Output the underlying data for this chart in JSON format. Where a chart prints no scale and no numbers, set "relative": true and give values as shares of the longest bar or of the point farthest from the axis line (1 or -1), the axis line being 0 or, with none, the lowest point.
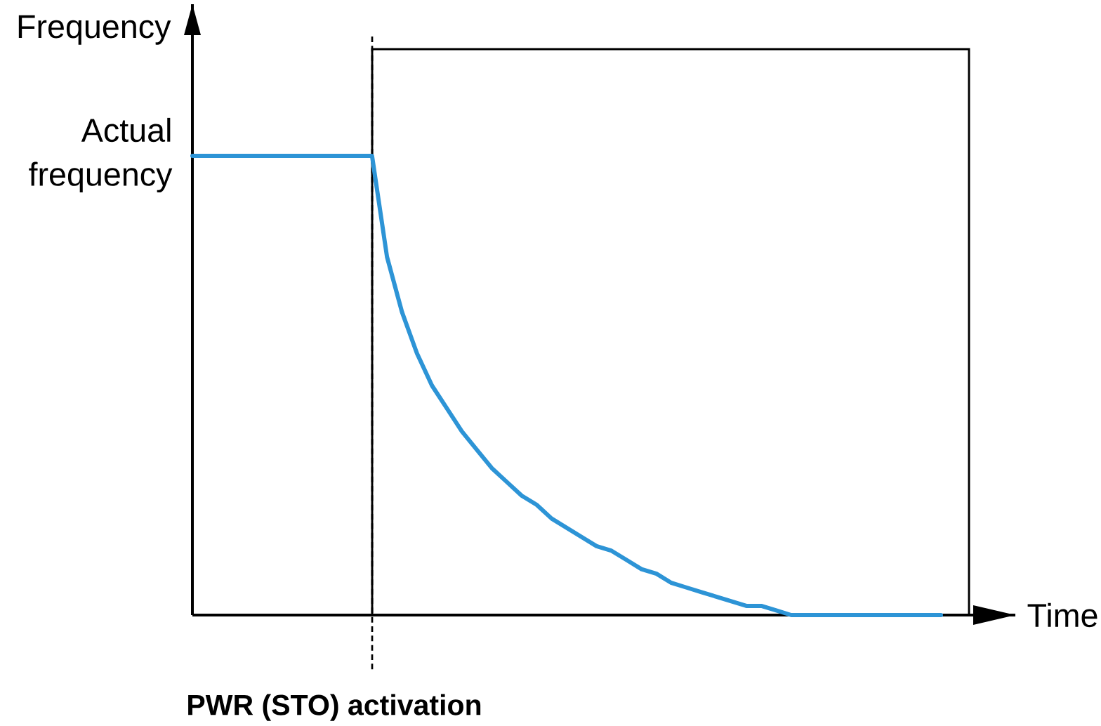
{
  "chart_data": {
    "type": "line",
    "xlabel": "Time",
    "ylabel": "Frequency",
    "relative": true,
    "marker": "none",
    "line_style": "solid",
    "categories": [
      null,
      null,
      null,
      null,
      null,
      null,
      null,
      null,
      null,
      null,
      null,
      null,
      null,
      null,
      null,
      null,
      null,
      null,
      null,
      null,
      null,
      null,
      null,
      null,
      null,
      null,
      null,
      null,
      null,
      null,
      null,
      null,
      null,
      null,
      null,
      null,
      null,
      null,
      null,
      null,
      null,
      null,
      null,
      null,
      null,
      null,
      null,
      null,
      null,
      null,
      null
    ],
    "series": [
      {
        "color": "#2d94d6",
        "values": [
          1,
          1,
          1,
          1,
          1,
          1,
          1,
          1,
          1,
          1,
          1,
          1,
          1,
          0.78,
          0.66,
          0.57,
          0.5,
          0.45,
          0.4,
          0.36,
          0.32,
          0.29,
          0.26,
          0.24,
          0.21,
          0.19,
          0.17,
          0.15,
          0.14,
          0.12,
          0.1,
          0.09,
          0.07,
          0.06,
          0.05,
          0.04,
          0.03,
          0.02,
          0.02,
          0.01,
          0,
          0,
          0,
          0,
          0,
          0,
          0,
          0,
          0,
          0,
          0
        ]
      }
    ],
    "annotations": [
      "Actual frequency",
      "PWR (STO) activation"
    ]
  }
}
